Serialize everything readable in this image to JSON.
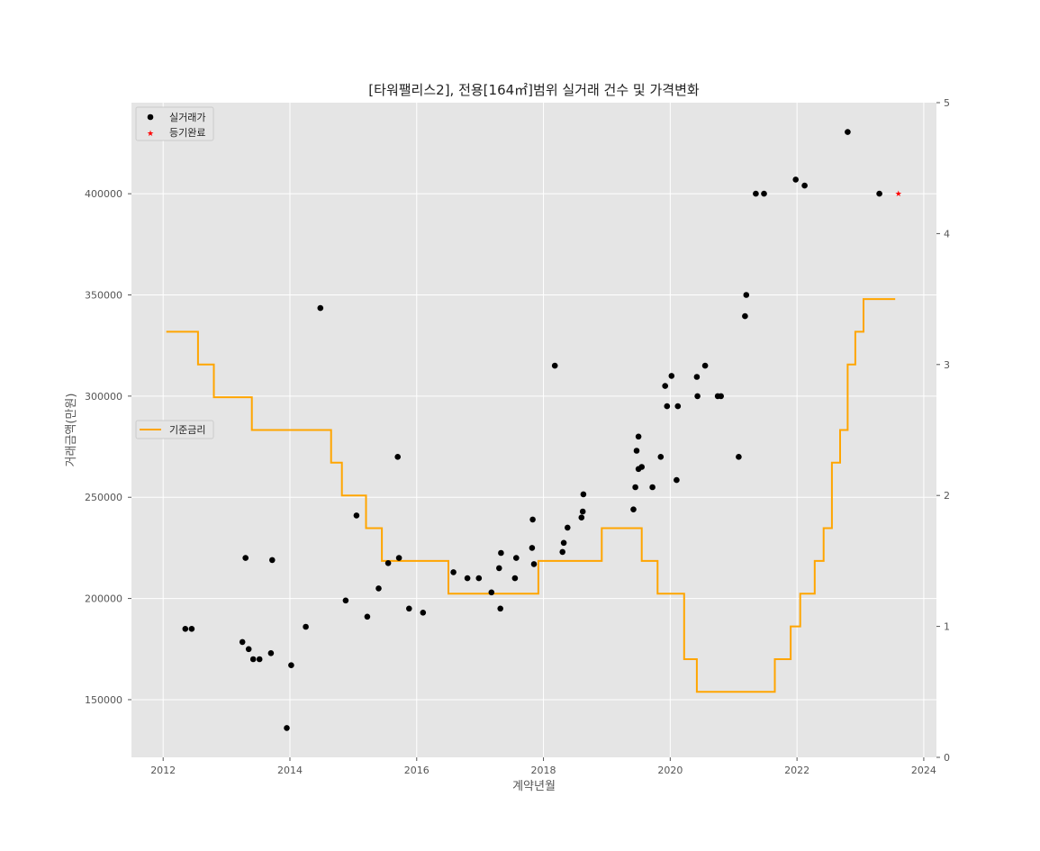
{
  "chart_data": {
    "type": "scatter",
    "title": "[타워팰리스2], 전용[164㎡]범위 실거래 건수 및 가격변화",
    "xlabel": "계약년월",
    "ylabel": "거래금액(만원)",
    "xlim": [
      2011.5,
      2024.2
    ],
    "ylim": [
      121500,
      445000
    ],
    "y2lim": [
      0,
      5
    ],
    "x_ticks": [
      2012,
      2014,
      2016,
      2018,
      2020,
      2022,
      2024
    ],
    "y_ticks": [
      150000,
      200000,
      250000,
      300000,
      350000,
      400000
    ],
    "y2_ticks": [
      0,
      1,
      2,
      3,
      4,
      5
    ],
    "grid": true,
    "background": "#e5e5e5",
    "series": [
      {
        "name": "실거래가",
        "kind": "scatter",
        "marker": "circle",
        "color": "#000000",
        "axis": "left",
        "points": [
          [
            2012.35,
            185000
          ],
          [
            2012.45,
            185000
          ],
          [
            2013.25,
            178500
          ],
          [
            2013.3,
            220000
          ],
          [
            2013.35,
            175000
          ],
          [
            2013.42,
            170000
          ],
          [
            2013.52,
            170000
          ],
          [
            2013.7,
            173000
          ],
          [
            2013.72,
            219000
          ],
          [
            2013.95,
            136000
          ],
          [
            2014.02,
            167000
          ],
          [
            2014.25,
            186000
          ],
          [
            2014.48,
            343500
          ],
          [
            2014.88,
            199000
          ],
          [
            2015.05,
            241000
          ],
          [
            2015.22,
            191000
          ],
          [
            2015.4,
            205000
          ],
          [
            2015.55,
            217500
          ],
          [
            2015.7,
            270000
          ],
          [
            2015.72,
            220000
          ],
          [
            2015.88,
            195000
          ],
          [
            2016.1,
            193000
          ],
          [
            2016.58,
            213000
          ],
          [
            2016.8,
            210000
          ],
          [
            2016.98,
            210000
          ],
          [
            2017.18,
            203000
          ],
          [
            2017.3,
            215000
          ],
          [
            2017.32,
            195000
          ],
          [
            2017.33,
            222500
          ],
          [
            2017.55,
            210000
          ],
          [
            2017.57,
            220000
          ],
          [
            2017.82,
            225000
          ],
          [
            2017.83,
            239000
          ],
          [
            2017.85,
            217000
          ],
          [
            2018.18,
            315000
          ],
          [
            2018.3,
            223000
          ],
          [
            2018.32,
            227500
          ],
          [
            2018.38,
            235000
          ],
          [
            2018.6,
            240000
          ],
          [
            2018.62,
            243000
          ],
          [
            2018.63,
            251500
          ],
          [
            2019.42,
            244000
          ],
          [
            2019.45,
            255000
          ],
          [
            2019.47,
            273000
          ],
          [
            2019.5,
            280000
          ],
          [
            2019.5,
            264000
          ],
          [
            2019.55,
            265000
          ],
          [
            2019.72,
            255000
          ],
          [
            2019.85,
            270000
          ],
          [
            2019.92,
            305000
          ],
          [
            2019.95,
            295000
          ],
          [
            2020.02,
            310000
          ],
          [
            2020.1,
            258500
          ],
          [
            2020.12,
            295000
          ],
          [
            2020.42,
            309500
          ],
          [
            2020.43,
            300000
          ],
          [
            2020.55,
            315000
          ],
          [
            2020.75,
            300000
          ],
          [
            2020.8,
            300000
          ],
          [
            2021.08,
            270000
          ],
          [
            2021.18,
            339500
          ],
          [
            2021.2,
            350000
          ],
          [
            2021.35,
            400000
          ],
          [
            2021.48,
            400000
          ],
          [
            2021.98,
            407000
          ],
          [
            2022.12,
            404000
          ],
          [
            2022.8,
            430500
          ],
          [
            2023.3,
            400000
          ]
        ]
      },
      {
        "name": "등기완료",
        "kind": "scatter",
        "marker": "star",
        "color": "#ff0000",
        "axis": "left",
        "points": [
          [
            2023.6,
            400000
          ]
        ]
      },
      {
        "name": "기준금리",
        "kind": "step",
        "color": "#ffa500",
        "axis": "right",
        "points": [
          [
            2012.05,
            3.25
          ],
          [
            2012.55,
            3.0
          ],
          [
            2012.8,
            2.75
          ],
          [
            2013.4,
            2.5
          ],
          [
            2014.65,
            2.25
          ],
          [
            2014.82,
            2.0
          ],
          [
            2015.2,
            1.75
          ],
          [
            2015.45,
            1.5
          ],
          [
            2016.5,
            1.25
          ],
          [
            2017.92,
            1.5
          ],
          [
            2018.92,
            1.75
          ],
          [
            2019.55,
            1.5
          ],
          [
            2019.8,
            1.25
          ],
          [
            2020.22,
            0.75
          ],
          [
            2020.42,
            0.5
          ],
          [
            2021.65,
            0.75
          ],
          [
            2021.9,
            1.0
          ],
          [
            2022.05,
            1.25
          ],
          [
            2022.28,
            1.5
          ],
          [
            2022.42,
            1.75
          ],
          [
            2022.55,
            2.25
          ],
          [
            2022.68,
            2.5
          ],
          [
            2022.8,
            3.0
          ],
          [
            2022.92,
            3.25
          ],
          [
            2023.05,
            3.5
          ],
          [
            2023.55,
            3.5
          ]
        ]
      }
    ],
    "legend": [
      {
        "label": "실거래가",
        "placement": "top-left"
      },
      {
        "label": "등기완료",
        "placement": "top-left"
      },
      {
        "label": "기준금리",
        "placement": "center-left"
      }
    ]
  }
}
